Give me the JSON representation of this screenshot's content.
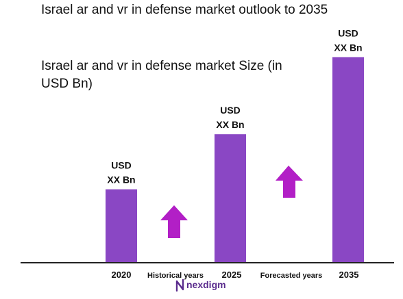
{
  "chart_data": {
    "type": "bar",
    "title": "Israel ar and vr in defense market outlook to 2035",
    "subtitle": "Israel ar and vr in defense market Size (in USD Bn)",
    "categories": [
      "2020",
      "2025",
      "2035"
    ],
    "values": [
      1.0,
      1.75,
      2.8
    ],
    "data_labels": [
      [
        "USD",
        "XX Bn"
      ],
      [
        "USD",
        "XX Bn"
      ],
      [
        "USD",
        "XX Bn"
      ]
    ],
    "period_labels": [
      "Historical years",
      "Forecasted years"
    ],
    "ylim": [
      0,
      3
    ],
    "grid": false,
    "legend": "none"
  },
  "brand": {
    "logo_text": "nexdigm"
  },
  "colors": {
    "bar": "#8a47c4",
    "arrow": "#b21fc6",
    "axis": "#222222",
    "logo": "#5b2d8e"
  }
}
